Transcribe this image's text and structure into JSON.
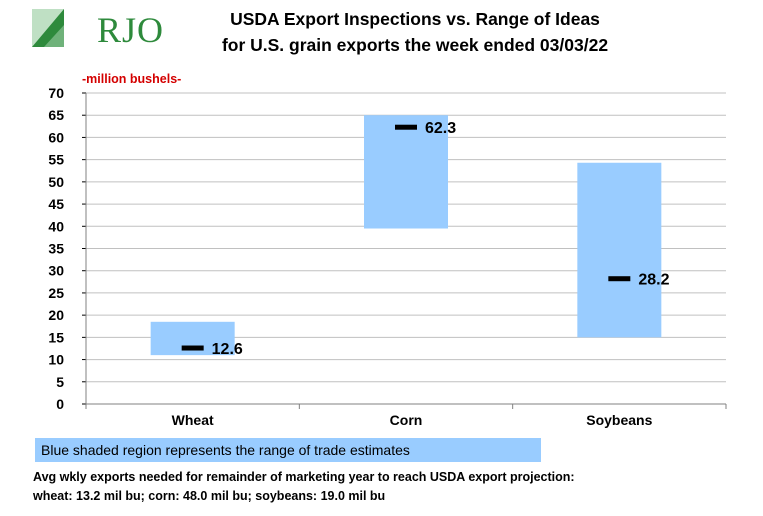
{
  "logo": {
    "text": "RJO"
  },
  "title_line1": "USDA Export Inspections vs. Range of Ideas",
  "title_line2": "for U.S. grain exports the week ended 03/03/22",
  "unit_label": "-million bushels-",
  "legend_text": "Blue shaded region represents the range of trade estimates",
  "note_line1": "Avg wkly exports needed for remainder of marketing year to reach USDA export projection:",
  "note_line2": "wheat: 13.2 mil bu; corn: 48.0 mil bu; soybeans: 19.0 mil bu",
  "colors": {
    "range": "#99ccff",
    "marker": "#000000",
    "grid": "#c0c0c0",
    "unit": "#d40000",
    "logo": "#2e8a3c"
  },
  "chart_data": {
    "type": "floating-bar",
    "categories": [
      "Wheat",
      "Corn",
      "Soybeans"
    ],
    "range_low": [
      11.0,
      39.5,
      15.0
    ],
    "range_high": [
      18.5,
      65.0,
      54.3
    ],
    "actual": [
      12.6,
      62.3,
      28.2
    ],
    "actual_labels": [
      "12.6",
      "62.3",
      "28.2"
    ],
    "ylim": [
      0,
      70
    ],
    "yticks": [
      0,
      5,
      10,
      15,
      20,
      25,
      30,
      35,
      40,
      45,
      50,
      55,
      60,
      65,
      70
    ],
    "grid": true
  }
}
